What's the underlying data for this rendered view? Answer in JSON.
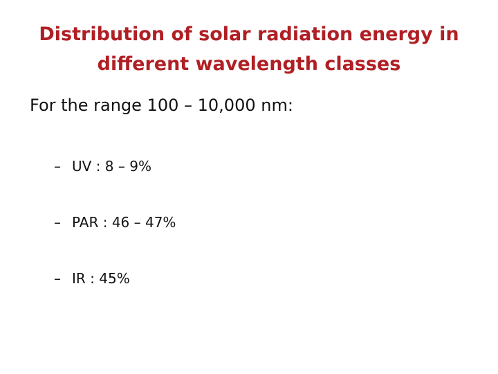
{
  "slide": {
    "title_lines": [
      "Distribution of solar radiation energy in",
      "different wavelength classes"
    ],
    "intro": "For the range 100 – 10,000 nm:",
    "bullet_marker": "–",
    "bullets": [
      "UV : 8 – 9%",
      "PAR : 46 – 47%",
      "IR : 45%"
    ]
  },
  "colors": {
    "title": "#b01f24",
    "body_text": "#111111",
    "background": "#ffffff"
  }
}
